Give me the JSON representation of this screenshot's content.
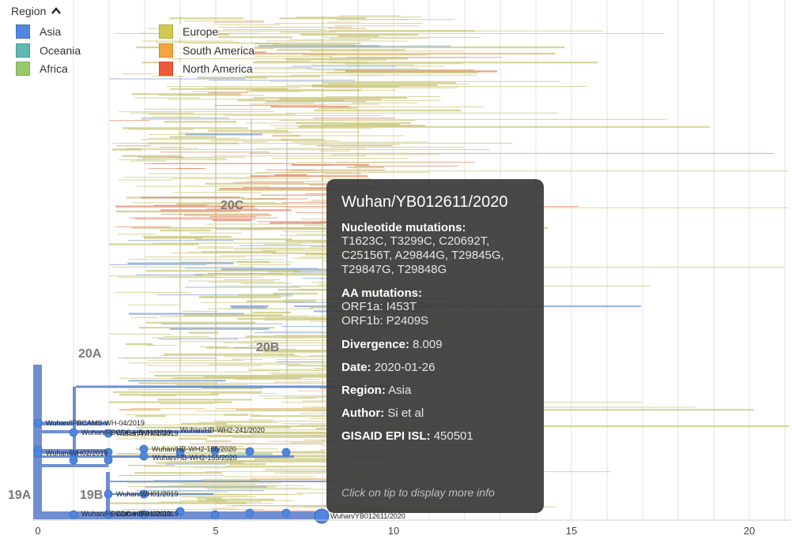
{
  "legend": {
    "title": "Region",
    "items": [
      {
        "label": "Asia",
        "color": "#4f86df"
      },
      {
        "label": "Oceania",
        "color": "#5fb8b0"
      },
      {
        "label": "Africa",
        "color": "#97c96d"
      },
      {
        "label": "Europe",
        "color": "#d1c94e"
      },
      {
        "label": "South America",
        "color": "#f3a53c"
      },
      {
        "label": "North America",
        "color": "#ef5b36"
      }
    ]
  },
  "clades": [
    "20C",
    "20A",
    "20B",
    "19A",
    "19B"
  ],
  "axis": {
    "ticks": [
      "0",
      "5",
      "10",
      "15",
      "20"
    ],
    "range": [
      0,
      21
    ]
  },
  "tip_labels": [
    "Wuhan/IPBCAMS-WH-04/2019",
    "Wuhan/HBCDC-HB-01/2019",
    "Wuhan/WH01/2019",
    "Wuhan/WH02/2019",
    "Wuhan/HB-WH2-156/2020",
    "Wuhan/HB-WH2-241/2020",
    "Wuhan/HB-WH2-155/2020",
    "Wuhan/YB012611/2020"
  ],
  "tooltip": {
    "title": "Wuhan/YB012611/2020",
    "nuc_label": "Nucleotide mutations:",
    "nuc_value": "T1623C, T3299C, C20692T, C25156T, A29844G, T29845G, T29847G, T29848G",
    "aa_label": "AA mutations:",
    "aa_lines": [
      "ORF1a: I453T",
      "ORF1b: P2409S"
    ],
    "divergence_label": "Divergence:",
    "divergence_value": "8.009",
    "date_label": "Date:",
    "date_value": "2020-01-26",
    "region_label": "Region:",
    "region_value": "Asia",
    "author_label": "Author:",
    "author_value": "Si et al",
    "gisaid_label": "GISAID EPI ISL:",
    "gisaid_value": "450501",
    "hint": "Click on tip to display more info"
  }
}
